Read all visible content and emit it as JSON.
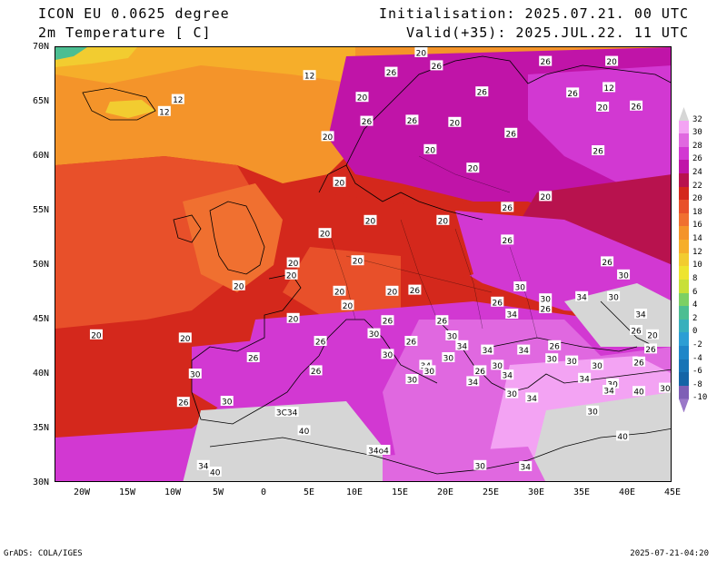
{
  "header": {
    "model": "ICON EU 0.0625 degree",
    "variable": "2m Temperature [ C]",
    "init": "Initialisation: 2025.07.21. 00 UTC",
    "valid": "Valid(+35): 2025.JUL.22. 11 UTC"
  },
  "map": {
    "lat_labels": [
      "70N",
      "65N",
      "60N",
      "55N",
      "50N",
      "45N",
      "40N",
      "35N",
      "30N"
    ],
    "lon_labels": [
      "20W",
      "15W",
      "10W",
      "5W",
      "0",
      "5E",
      "10E",
      "15E",
      "20E",
      "25E",
      "30E",
      "35E",
      "40E",
      "45E"
    ],
    "lon_range": [
      -23,
      45
    ],
    "lat_range": [
      30,
      70
    ],
    "contour_labels": [
      {
        "text": "12",
        "lon": 5,
        "lat": 67.4
      },
      {
        "text": "12",
        "lon": -9.5,
        "lat": 65.2
      },
      {
        "text": "12",
        "lon": -11,
        "lat": 64.1
      },
      {
        "text": "12",
        "lon": 38,
        "lat": 66.3
      },
      {
        "text": "20",
        "lon": 17.3,
        "lat": 69.5
      },
      {
        "text": "26",
        "lon": 19,
        "lat": 68.3
      },
      {
        "text": "26",
        "lon": 31,
        "lat": 68.7
      },
      {
        "text": "20",
        "lon": 38.3,
        "lat": 68.7
      },
      {
        "text": "26",
        "lon": 14,
        "lat": 67.7
      },
      {
        "text": "26",
        "lon": 24,
        "lat": 65.9
      },
      {
        "text": "26",
        "lon": 34,
        "lat": 65.8
      },
      {
        "text": "20",
        "lon": 10.8,
        "lat": 65.4
      },
      {
        "text": "20",
        "lon": 37.3,
        "lat": 64.5
      },
      {
        "text": "26",
        "lon": 41,
        "lat": 64.6
      },
      {
        "text": "26",
        "lon": 11.3,
        "lat": 63.2
      },
      {
        "text": "26",
        "lon": 16.3,
        "lat": 63.3
      },
      {
        "text": "20",
        "lon": 21,
        "lat": 63.1
      },
      {
        "text": "26",
        "lon": 27.2,
        "lat": 62.1
      },
      {
        "text": "20",
        "lon": 7,
        "lat": 61.8
      },
      {
        "text": "20",
        "lon": 18.3,
        "lat": 60.6
      },
      {
        "text": "26",
        "lon": 36.8,
        "lat": 60.5
      },
      {
        "text": "20",
        "lon": 23,
        "lat": 58.9
      },
      {
        "text": "20",
        "lon": 8.3,
        "lat": 57.6
      },
      {
        "text": "20",
        "lon": 31,
        "lat": 56.3
      },
      {
        "text": "26",
        "lon": 26.8,
        "lat": 55.3
      },
      {
        "text": "20",
        "lon": 11.7,
        "lat": 54.1
      },
      {
        "text": "20",
        "lon": 19.7,
        "lat": 54.1
      },
      {
        "text": "20",
        "lon": 6.7,
        "lat": 52.9
      },
      {
        "text": "26",
        "lon": 26.8,
        "lat": 52.3
      },
      {
        "text": "20",
        "lon": 3.2,
        "lat": 50.2
      },
      {
        "text": "20",
        "lon": 10.3,
        "lat": 50.4
      },
      {
        "text": "26",
        "lon": 37.8,
        "lat": 50.3
      },
      {
        "text": "20",
        "lon": 3,
        "lat": 49.1
      },
      {
        "text": "30",
        "lon": 39.6,
        "lat": 49.1
      },
      {
        "text": "20",
        "lon": -2.8,
        "lat": 48.1
      },
      {
        "text": "30",
        "lon": 28.2,
        "lat": 48.0
      },
      {
        "text": "20",
        "lon": 8.3,
        "lat": 47.6
      },
      {
        "text": "20",
        "lon": 14.1,
        "lat": 47.6
      },
      {
        "text": "26",
        "lon": 16.6,
        "lat": 47.7
      },
      {
        "text": "34",
        "lon": 35,
        "lat": 47.1
      },
      {
        "text": "30",
        "lon": 38.5,
        "lat": 47.1
      },
      {
        "text": "30",
        "lon": 31,
        "lat": 46.9
      },
      {
        "text": "26",
        "lon": 25.7,
        "lat": 46.6
      },
      {
        "text": "20",
        "lon": 9.2,
        "lat": 46.3
      },
      {
        "text": "26",
        "lon": 31,
        "lat": 46.0
      },
      {
        "text": "34",
        "lon": 27.3,
        "lat": 45.5
      },
      {
        "text": "34",
        "lon": 41.5,
        "lat": 45.5
      },
      {
        "text": "20",
        "lon": 3.2,
        "lat": 45.1
      },
      {
        "text": "26",
        "lon": 13.6,
        "lat": 44.9
      },
      {
        "text": "26",
        "lon": 19.6,
        "lat": 44.9
      },
      {
        "text": "26",
        "lon": 41,
        "lat": 44.0
      },
      {
        "text": "20",
        "lon": 42.8,
        "lat": 43.6
      },
      {
        "text": "20",
        "lon": -18.5,
        "lat": 43.6
      },
      {
        "text": "20",
        "lon": -8.7,
        "lat": 43.3
      },
      {
        "text": "30",
        "lon": 12.1,
        "lat": 43.7
      },
      {
        "text": "26",
        "lon": 6.2,
        "lat": 43.0
      },
      {
        "text": "26",
        "lon": 16.2,
        "lat": 43.0
      },
      {
        "text": "30",
        "lon": 20.7,
        "lat": 43.5
      },
      {
        "text": "34",
        "lon": 21.8,
        "lat": 42.6
      },
      {
        "text": "26",
        "lon": 32,
        "lat": 42.6
      },
      {
        "text": "26",
        "lon": 42.6,
        "lat": 42.3
      },
      {
        "text": "34",
        "lon": 24.6,
        "lat": 42.2
      },
      {
        "text": "34",
        "lon": 28.6,
        "lat": 42.2
      },
      {
        "text": "30",
        "lon": 13.6,
        "lat": 41.8
      },
      {
        "text": "26",
        "lon": -1.2,
        "lat": 41.5
      },
      {
        "text": "30",
        "lon": 20.3,
        "lat": 41.5
      },
      {
        "text": "30",
        "lon": 33.9,
        "lat": 41.2
      },
      {
        "text": "30",
        "lon": 31.7,
        "lat": 41.4
      },
      {
        "text": "26",
        "lon": 41.3,
        "lat": 41.1
      },
      {
        "text": "34",
        "lon": 17.8,
        "lat": 40.8
      },
      {
        "text": "30",
        "lon": 25.7,
        "lat": 40.8
      },
      {
        "text": "30",
        "lon": 36.7,
        "lat": 40.8
      },
      {
        "text": "26",
        "lon": 5.7,
        "lat": 40.3
      },
      {
        "text": "30",
        "lon": 18.2,
        "lat": 40.3
      },
      {
        "text": "26",
        "lon": 23.8,
        "lat": 40.3
      },
      {
        "text": "34",
        "lon": 26.8,
        "lat": 39.9
      },
      {
        "text": "30",
        "lon": -7.6,
        "lat": 40.0
      },
      {
        "text": "30",
        "lon": 16.3,
        "lat": 39.5
      },
      {
        "text": "34",
        "lon": 23,
        "lat": 39.3
      },
      {
        "text": "34",
        "lon": 35.3,
        "lat": 39.6
      },
      {
        "text": "30",
        "lon": 38.4,
        "lat": 39.1
      },
      {
        "text": "34",
        "lon": 38,
        "lat": 38.5
      },
      {
        "text": "40",
        "lon": 41.3,
        "lat": 38.4
      },
      {
        "text": "30",
        "lon": 44.2,
        "lat": 38.7
      },
      {
        "text": "30",
        "lon": 27.3,
        "lat": 38.2
      },
      {
        "text": "34",
        "lon": 29.5,
        "lat": 37.8
      },
      {
        "text": "30",
        "lon": -4.1,
        "lat": 37.5
      },
      {
        "text": "26",
        "lon": -8.9,
        "lat": 37.4
      },
      {
        "text": "30",
        "lon": 36.2,
        "lat": 36.6
      },
      {
        "text": "3C34",
        "lon": 2.5,
        "lat": 36.5
      },
      {
        "text": "40",
        "lon": 4.4,
        "lat": 34.8
      },
      {
        "text": "40",
        "lon": 39.5,
        "lat": 34.3
      },
      {
        "text": "34o4",
        "lon": 12.6,
        "lat": 33.0
      },
      {
        "text": "30",
        "lon": 23.8,
        "lat": 31.6
      },
      {
        "text": "34",
        "lon": 28.8,
        "lat": 31.5
      },
      {
        "text": "34",
        "lon": -6.7,
        "lat": 31.6
      },
      {
        "text": "40",
        "lon": -5.4,
        "lat": 31.0
      }
    ]
  },
  "colorbar": {
    "levels": [
      "32",
      "30",
      "28",
      "26",
      "24",
      "22",
      "20",
      "18",
      "16",
      "14",
      "12",
      "10",
      "8",
      "6",
      "4",
      "2",
      "0",
      "-2",
      "-4",
      "-6",
      "-8",
      "-10"
    ],
    "colors": [
      "#d6d6d6",
      "#f3a3f3",
      "#e068e0",
      "#d238d2",
      "#c014a8",
      "#b8124e",
      "#d4281c",
      "#e8502a",
      "#f07030",
      "#f4942a",
      "#f6ae2a",
      "#f2cc30",
      "#eee430",
      "#c8e038",
      "#7cd064",
      "#4cbe92",
      "#38b0bc",
      "#2c9ed4",
      "#1e86c8",
      "#1874b6",
      "#1464a6",
      "#7e5fb6",
      "#9a78c8"
    ]
  },
  "footer": {
    "left": "GrADS: COLA/IGES",
    "right": "2025-07-21-04:20"
  }
}
